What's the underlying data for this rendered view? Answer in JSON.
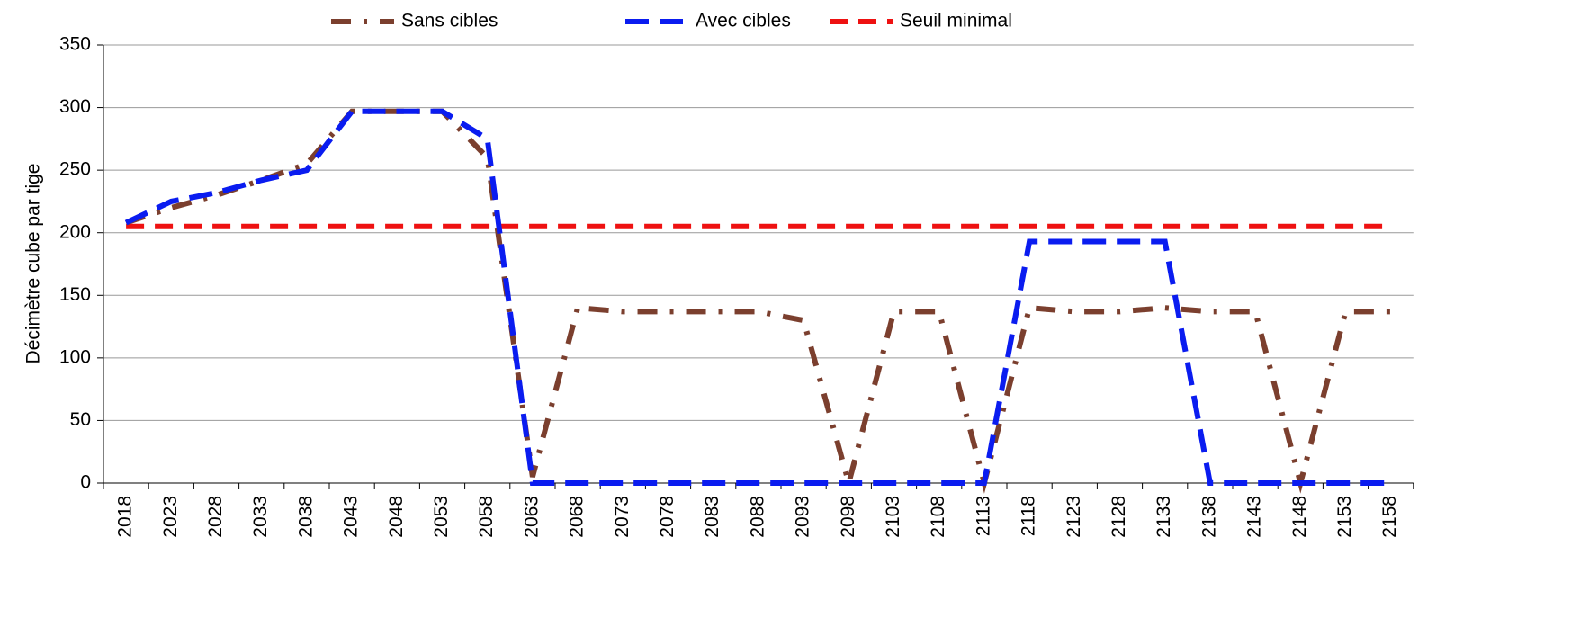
{
  "chart_data": {
    "type": "line",
    "y_label": "Décimètre cube par tige",
    "categories": [
      "2018",
      "2023",
      "2028",
      "2033",
      "2038",
      "2043",
      "2048",
      "2053",
      "2058",
      "2063",
      "2068",
      "2073",
      "2078",
      "2083",
      "2088",
      "2093",
      "2098",
      "2103",
      "2108",
      "2113",
      "2118",
      "2123",
      "2128",
      "2133",
      "2138",
      "2143",
      "2148",
      "2153",
      "2158"
    ],
    "series": [
      {
        "name": "Sans cibles",
        "color": "#7b3f2e",
        "dash": "dashdot",
        "values": [
          208,
          220,
          230,
          242,
          255,
          297,
          297,
          297,
          260,
          5,
          140,
          137,
          137,
          137,
          137,
          130,
          0,
          137,
          137,
          0,
          140,
          137,
          137,
          140,
          137,
          137,
          0,
          137,
          137
        ]
      },
      {
        "name": "Avec cibles",
        "color": "#0a1cf0",
        "dash": "dash",
        "values": [
          208,
          225,
          232,
          242,
          250,
          297,
          297,
          297,
          275,
          0,
          0,
          0,
          0,
          0,
          0,
          0,
          0,
          0,
          0,
          0,
          193,
          193,
          193,
          193,
          0,
          0,
          0,
          0,
          0
        ]
      },
      {
        "name": "Seuil minimal",
        "color": "#ee1111",
        "dash": "short",
        "values": [
          205,
          205,
          205,
          205,
          205,
          205,
          205,
          205,
          205,
          205,
          205,
          205,
          205,
          205,
          205,
          205,
          205,
          205,
          205,
          205,
          205,
          205,
          205,
          205,
          205,
          205,
          205,
          205,
          205
        ]
      }
    ],
    "ylim": [
      0,
      350
    ],
    "yticks": [
      0,
      50,
      100,
      150,
      200,
      250,
      300,
      350
    ],
    "grid": true,
    "legend": "top"
  }
}
